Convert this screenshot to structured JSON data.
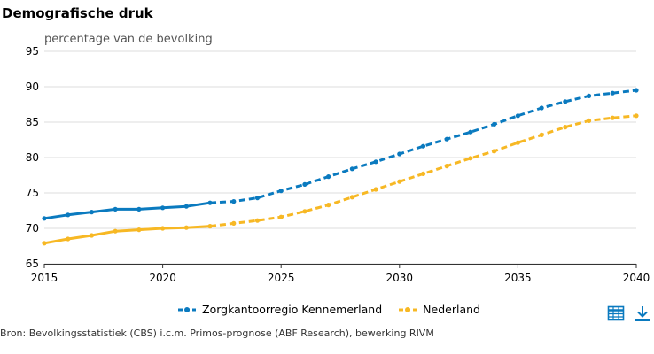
{
  "title": "Demografische druk",
  "source": "Bron: Bevolkingsstatistiek (CBS) i.c.m. Primos-prognose (ABF Research), bewerking RIVM",
  "icons": {
    "table": "table-icon",
    "download": "download-icon"
  },
  "chart_data": {
    "type": "line",
    "title": "Demografische druk",
    "ylabel": "percentage van de bevolking",
    "xlabel": "",
    "xlim": [
      2015,
      2040
    ],
    "ylim": [
      65,
      95
    ],
    "xticks": [
      2015,
      2020,
      2025,
      2030,
      2035,
      2040
    ],
    "yticks": [
      65,
      70,
      75,
      80,
      85,
      90,
      95
    ],
    "grid": true,
    "legend": "bottom",
    "projection_start": 2022,
    "x": [
      2015,
      2016,
      2017,
      2018,
      2019,
      2020,
      2021,
      2022,
      2023,
      2024,
      2025,
      2026,
      2027,
      2028,
      2029,
      2030,
      2031,
      2032,
      2033,
      2034,
      2035,
      2036,
      2037,
      2038,
      2039,
      2040
    ],
    "series": [
      {
        "name": "Zorgkantoorregio Kennemerland",
        "color": "#0a7abf",
        "values": [
          71.4,
          71.9,
          72.3,
          72.7,
          72.7,
          72.9,
          73.1,
          73.6,
          73.8,
          74.3,
          75.3,
          76.2,
          77.3,
          78.4,
          79.4,
          80.5,
          81.6,
          82.6,
          83.6,
          84.7,
          85.9,
          87.0,
          87.9,
          88.7,
          89.1,
          89.5
        ]
      },
      {
        "name": "Nederland",
        "color": "#f7b824",
        "values": [
          67.9,
          68.5,
          69.0,
          69.6,
          69.8,
          70.0,
          70.1,
          70.3,
          70.7,
          71.1,
          71.6,
          72.4,
          73.3,
          74.4,
          75.5,
          76.6,
          77.7,
          78.8,
          79.9,
          80.9,
          82.1,
          83.2,
          84.3,
          85.2,
          85.6,
          85.9
        ]
      }
    ]
  }
}
